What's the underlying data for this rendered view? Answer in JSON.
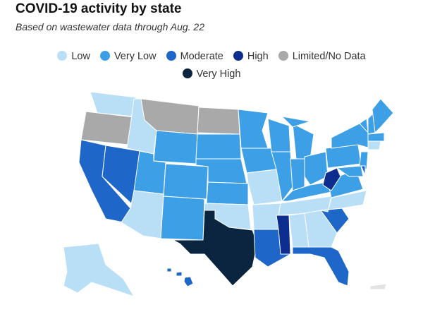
{
  "title": "COVID-19 activity by state",
  "subtitle": "Based on wastewater data through Aug. 22",
  "legend": [
    {
      "label": "Low",
      "color": "#b9dff7"
    },
    {
      "label": "Very Low",
      "color": "#3d9fe6"
    },
    {
      "label": "Moderate",
      "color": "#1f66c9"
    },
    {
      "label": "High",
      "color": "#0d2d8f"
    },
    {
      "label": "Limited/No Data",
      "color": "#a9a9a9"
    },
    {
      "label": "Very High",
      "color": "#0b2540"
    }
  ]
}
